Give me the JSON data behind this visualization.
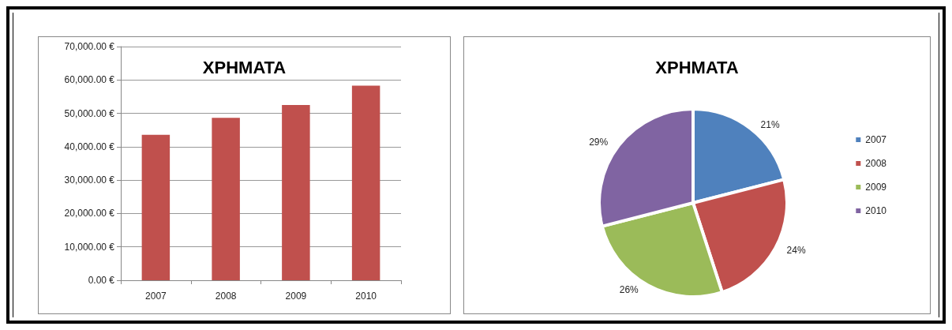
{
  "chart_data": [
    {
      "type": "bar",
      "title": "ΧΡΗΜΑΤΑ",
      "categories": [
        "2007",
        "2008",
        "2009",
        "2010"
      ],
      "values": [
        43600,
        48650,
        52500,
        58300
      ],
      "color": "#c0504d",
      "ylim": [
        0,
        70000
      ],
      "yticks": [
        {
          "value": 0,
          "label": "0.00 €"
        },
        {
          "value": 10000,
          "label": "10,000.00 €"
        },
        {
          "value": 20000,
          "label": "20,000.00 €"
        },
        {
          "value": 30000,
          "label": "30,000.00 €"
        },
        {
          "value": 40000,
          "label": "40,000.00 €"
        },
        {
          "value": 50000,
          "label": "50,000.00 €"
        },
        {
          "value": 60000,
          "label": "60,000.00 €"
        },
        {
          "value": 70000,
          "label": "70,000.00 €"
        }
      ],
      "grid": "y",
      "legend": false
    },
    {
      "type": "pie",
      "title": "ΧΡΗΜΑΤΑ",
      "categories": [
        "2007",
        "2008",
        "2009",
        "2010"
      ],
      "values": [
        21,
        24,
        26,
        29
      ],
      "colors": [
        "#4f81bd",
        "#c0504d",
        "#9bbb59",
        "#8064a2"
      ],
      "value_labels": [
        "21%",
        "24%",
        "26%",
        "29%"
      ],
      "legend": "right"
    }
  ]
}
